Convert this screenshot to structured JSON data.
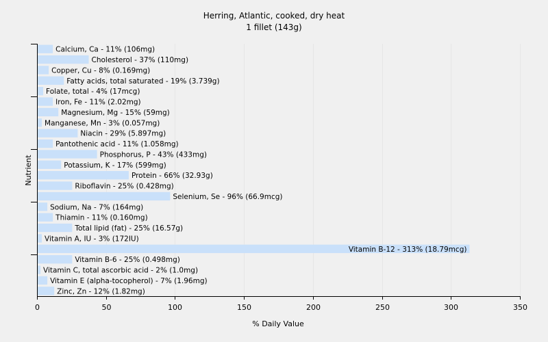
{
  "chart_data": {
    "type": "bar",
    "orientation": "horizontal",
    "title": "Herring, Atlantic, cooked, dry heat",
    "subtitle": "1 fillet (143g)",
    "xlabel": "% Daily Value",
    "ylabel": "Nutrient",
    "xlim": [
      0,
      350
    ],
    "xticks": [
      0,
      50,
      100,
      150,
      200,
      250,
      300,
      350
    ],
    "grid": true,
    "bar_color": "#c9e0fa",
    "categories": [
      "Calcium, Ca",
      "Cholesterol",
      "Copper, Cu",
      "Fatty acids, total saturated",
      "Folate, total",
      "Iron, Fe",
      "Magnesium, Mg",
      "Manganese, Mn",
      "Niacin",
      "Pantothenic acid",
      "Phosphorus, P",
      "Potassium, K",
      "Protein",
      "Riboflavin",
      "Selenium, Se",
      "Sodium, Na",
      "Thiamin",
      "Total lipid (fat)",
      "Vitamin A, IU",
      "Vitamin B-12",
      "Vitamin B-6",
      "Vitamin C, total ascorbic acid",
      "Vitamin E (alpha-tocopherol)",
      "Zinc, Zn"
    ],
    "values": [
      11,
      37,
      8,
      19,
      4,
      11,
      15,
      3,
      29,
      11,
      43,
      17,
      66,
      25,
      96,
      7,
      11,
      25,
      3,
      313,
      25,
      2,
      7,
      12
    ],
    "labels": [
      "Calcium, Ca - 11% (106mg)",
      "Cholesterol - 37% (110mg)",
      "Copper, Cu - 8% (0.169mg)",
      "Fatty acids, total saturated - 19% (3.739g)",
      "Folate, total - 4% (17mcg)",
      "Iron, Fe - 11% (2.02mg)",
      "Magnesium, Mg - 15% (59mg)",
      "Manganese, Mn - 3% (0.057mg)",
      "Niacin - 29% (5.897mg)",
      "Pantothenic acid - 11% (1.058mg)",
      "Phosphorus, P - 43% (433mg)",
      "Potassium, K - 17% (599mg)",
      "Protein - 66% (32.93g)",
      "Riboflavin - 25% (0.428mg)",
      "Selenium, Se - 96% (66.9mcg)",
      "Sodium, Na - 7% (164mg)",
      "Thiamin - 11% (0.160mg)",
      "Total lipid (fat) - 25% (16.57g)",
      "Vitamin A, IU - 3% (172IU)",
      "Vitamin B-12 - 313% (18.79mcg)",
      "Vitamin B-6 - 25% (0.498mg)",
      "Vitamin C, total ascorbic acid - 2% (1.0mg)",
      "Vitamin E (alpha-tocopherol) - 7% (1.96mg)",
      "Zinc, Zn - 12% (1.82mg)"
    ]
  }
}
